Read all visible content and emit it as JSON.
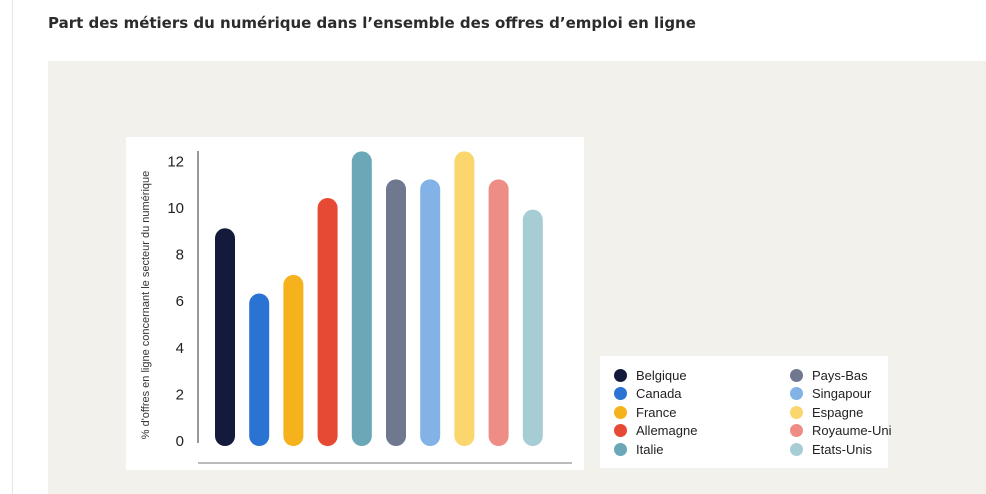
{
  "page": {
    "title": "Part des métiers du numérique dans l’ensemble des offres d’emploi en ligne"
  },
  "chart_data": {
    "type": "bar",
    "title": "",
    "xlabel": "",
    "ylabel": "% d'offres en ligne concernant le secteur du numérique",
    "ylim": [
      0,
      12
    ],
    "yticks": [
      0,
      2,
      4,
      6,
      8,
      10,
      12
    ],
    "grid": false,
    "legend_placement": "bottom-right",
    "categories": [
      "Belgique",
      "Canada",
      "France",
      "Allemagne",
      "Italie",
      "Pays-Bas",
      "Singapour",
      "Espagne",
      "Royaume-Uni",
      "Etats-Unis"
    ],
    "values": [
      9.0,
      6.2,
      7.0,
      10.3,
      12.3,
      11.1,
      11.1,
      12.3,
      11.1,
      9.8
    ],
    "colors": [
      "#141a3c",
      "#2a73d3",
      "#f6b21c",
      "#e64a34",
      "#6aa7b7",
      "#707890",
      "#82b2e6",
      "#fbd66d",
      "#ee8d85",
      "#a7cdd4"
    ]
  }
}
